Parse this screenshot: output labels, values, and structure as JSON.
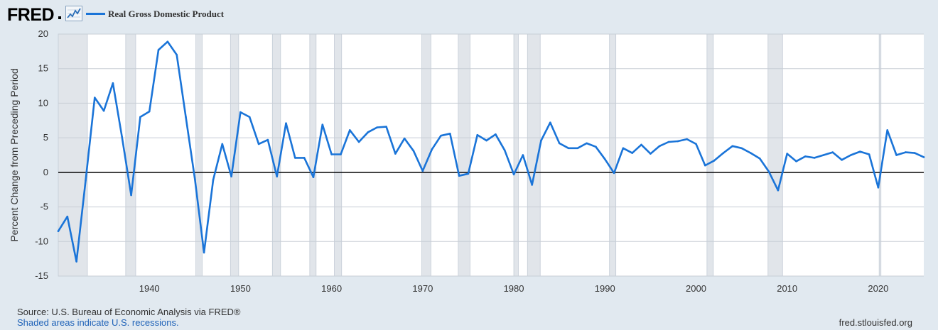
{
  "header": {
    "logo_text": "FRED",
    "chart_icon": "line-chart-icon",
    "legend_label": "Real Gross Domestic Product",
    "series_color": "#1a74d8"
  },
  "chart_data": {
    "type": "line",
    "title": "",
    "xlabel": "",
    "ylabel": "Percent Change from Preceding Period",
    "xlim": [
      1930,
      2025
    ],
    "ylim": [
      -15,
      20
    ],
    "y_ticks": [
      20,
      15,
      10,
      5,
      0,
      -5,
      -10,
      -15
    ],
    "x_ticks": [
      1940,
      1950,
      1960,
      1970,
      1980,
      1990,
      2000,
      2010,
      2020
    ],
    "grid": true,
    "zero_line": true,
    "background_color": "#ffffff",
    "recession_color": "#e1e5ea",
    "recessions": [
      [
        1929.7,
        1933.2
      ],
      [
        1937.4,
        1938.5
      ],
      [
        1945.1,
        1945.8
      ],
      [
        1948.9,
        1949.8
      ],
      [
        1953.5,
        1954.4
      ],
      [
        1957.6,
        1958.3
      ],
      [
        1960.3,
        1961.1
      ],
      [
        1969.9,
        1970.9
      ],
      [
        1973.9,
        1975.2
      ],
      [
        1980.0,
        1980.5
      ],
      [
        1981.5,
        1982.9
      ],
      [
        1990.5,
        1991.2
      ],
      [
        2001.2,
        2001.9
      ],
      [
        2007.9,
        2009.5
      ],
      [
        2020.1,
        2020.3
      ]
    ],
    "series": [
      {
        "name": "Real Gross Domestic Product",
        "color": "#1a74d8",
        "x": [
          1930,
          1931,
          1932,
          1933,
          1934,
          1935,
          1936,
          1937,
          1938,
          1939,
          1940,
          1941,
          1942,
          1943,
          1944,
          1945,
          1946,
          1947,
          1948,
          1949,
          1950,
          1951,
          1952,
          1953,
          1954,
          1955,
          1956,
          1957,
          1958,
          1959,
          1960,
          1961,
          1962,
          1963,
          1964,
          1965,
          1966,
          1967,
          1968,
          1969,
          1970,
          1971,
          1972,
          1973,
          1974,
          1975,
          1976,
          1977,
          1978,
          1979,
          1980,
          1981,
          1982,
          1983,
          1984,
          1985,
          1986,
          1987,
          1988,
          1989,
          1990,
          1991,
          1992,
          1993,
          1994,
          1995,
          1996,
          1997,
          1998,
          1999,
          2000,
          2001,
          2002,
          2003,
          2004,
          2005,
          2006,
          2007,
          2008,
          2009,
          2010,
          2011,
          2012,
          2013,
          2014,
          2015,
          2016,
          2017,
          2018,
          2019,
          2020,
          2021,
          2022,
          2023,
          2024,
          2025
        ],
        "y": [
          -8.5,
          -6.4,
          -12.9,
          -1.2,
          10.8,
          8.9,
          12.9,
          5.1,
          -3.3,
          8.0,
          8.8,
          17.7,
          18.9,
          17.0,
          8.0,
          -1.0,
          -11.6,
          -1.1,
          4.1,
          -0.6,
          8.7,
          8.0,
          4.1,
          4.7,
          -0.6,
          7.1,
          2.1,
          2.1,
          -0.7,
          6.9,
          2.6,
          2.6,
          6.1,
          4.4,
          5.8,
          6.5,
          6.6,
          2.7,
          4.9,
          3.1,
          0.2,
          3.3,
          5.3,
          5.6,
          -0.5,
          -0.2,
          5.4,
          4.6,
          5.5,
          3.2,
          -0.3,
          2.5,
          -1.8,
          4.6,
          7.2,
          4.2,
          3.5,
          3.5,
          4.2,
          3.7,
          1.9,
          -0.1,
          3.5,
          2.8,
          4.0,
          2.7,
          3.8,
          4.4,
          4.5,
          4.8,
          4.1,
          1.0,
          1.7,
          2.8,
          3.8,
          3.5,
          2.8,
          2.0,
          0.1,
          -2.6,
          2.7,
          1.6,
          2.3,
          2.1,
          2.5,
          2.9,
          1.8,
          2.5,
          3.0,
          2.6,
          -2.2,
          6.1,
          2.5,
          2.9,
          2.8,
          2.2
        ]
      }
    ]
  },
  "footer": {
    "source": "Source: U.S. Bureau of Economic Analysis via FRED®",
    "note": "Shaded areas indicate U.S. recessions.",
    "site": "fred.stlouisfed.org"
  }
}
